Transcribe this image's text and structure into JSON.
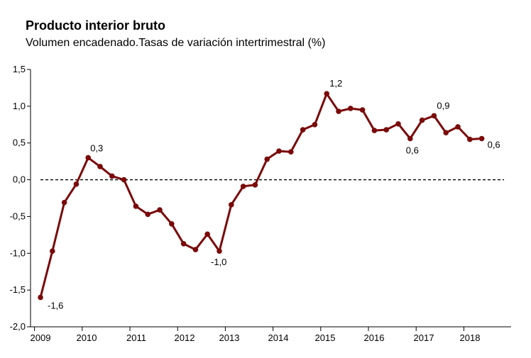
{
  "chart_data": {
    "type": "line",
    "title": "Producto interior bruto",
    "subtitle": "Volumen encadenado.Tasas de variación intertrimestral (%)",
    "xlabel": "",
    "ylabel": "",
    "ylim": [
      -2.0,
      1.5
    ],
    "yticks": [
      "1,5",
      "1,0",
      "0,5",
      "0,0",
      "-0,5",
      "-1,0",
      "-1,5",
      "-2,0"
    ],
    "ytick_values": [
      1.5,
      1.0,
      0.5,
      0.0,
      -0.5,
      -1.0,
      -1.5,
      -2.0
    ],
    "xticks": [
      "2009",
      "2010",
      "2011",
      "2012",
      "2013",
      "2014",
      "2015",
      "2016",
      "2017",
      "2018"
    ],
    "series": [
      {
        "name": "PIB",
        "color": "#7a0a0a",
        "x": [
          "2009 T1",
          "2009 T2",
          "2009 T3",
          "2009 T4",
          "2010 T1",
          "2010 T2",
          "2010 T3",
          "2010 T4",
          "2011 T1",
          "2011 T2",
          "2011 T3",
          "2011 T4",
          "2012 T1",
          "2012 T2",
          "2012 T3",
          "2012 T4",
          "2013 T1",
          "2013 T2",
          "2013 T3",
          "2013 T4",
          "2014 T1",
          "2014 T2",
          "2014 T3",
          "2014 T4",
          "2015 T1",
          "2015 T2",
          "2015 T3",
          "2015 T4",
          "2016 T1",
          "2016 T2",
          "2016 T3",
          "2016 T4",
          "2017 T1",
          "2017 T2",
          "2017 T3",
          "2017 T4",
          "2018 T1",
          "2018 T2"
        ],
        "values": [
          -1.6,
          -0.97,
          -0.31,
          -0.06,
          0.3,
          0.18,
          0.05,
          0.0,
          -0.36,
          -0.47,
          -0.41,
          -0.6,
          -0.87,
          -0.95,
          -0.74,
          -0.97,
          -0.34,
          -0.09,
          -0.07,
          0.28,
          0.39,
          0.38,
          0.68,
          0.75,
          1.17,
          0.93,
          0.97,
          0.95,
          0.67,
          0.68,
          0.76,
          0.56,
          0.81,
          0.87,
          0.64,
          0.72,
          0.55,
          0.56
        ]
      }
    ],
    "annotations": [
      {
        "index": 0,
        "text": "-1,6"
      },
      {
        "index": 4,
        "text": "0,3"
      },
      {
        "index": 15,
        "text": "-1,0"
      },
      {
        "index": 24,
        "text": "1,2"
      },
      {
        "index": 31,
        "text": "0,6"
      },
      {
        "index": 33,
        "text": "0,9"
      },
      {
        "index": 37,
        "text": "0,6"
      }
    ],
    "reference_line": {
      "value": 0.0,
      "style": "dashed"
    },
    "grid": false,
    "legend": "none"
  }
}
